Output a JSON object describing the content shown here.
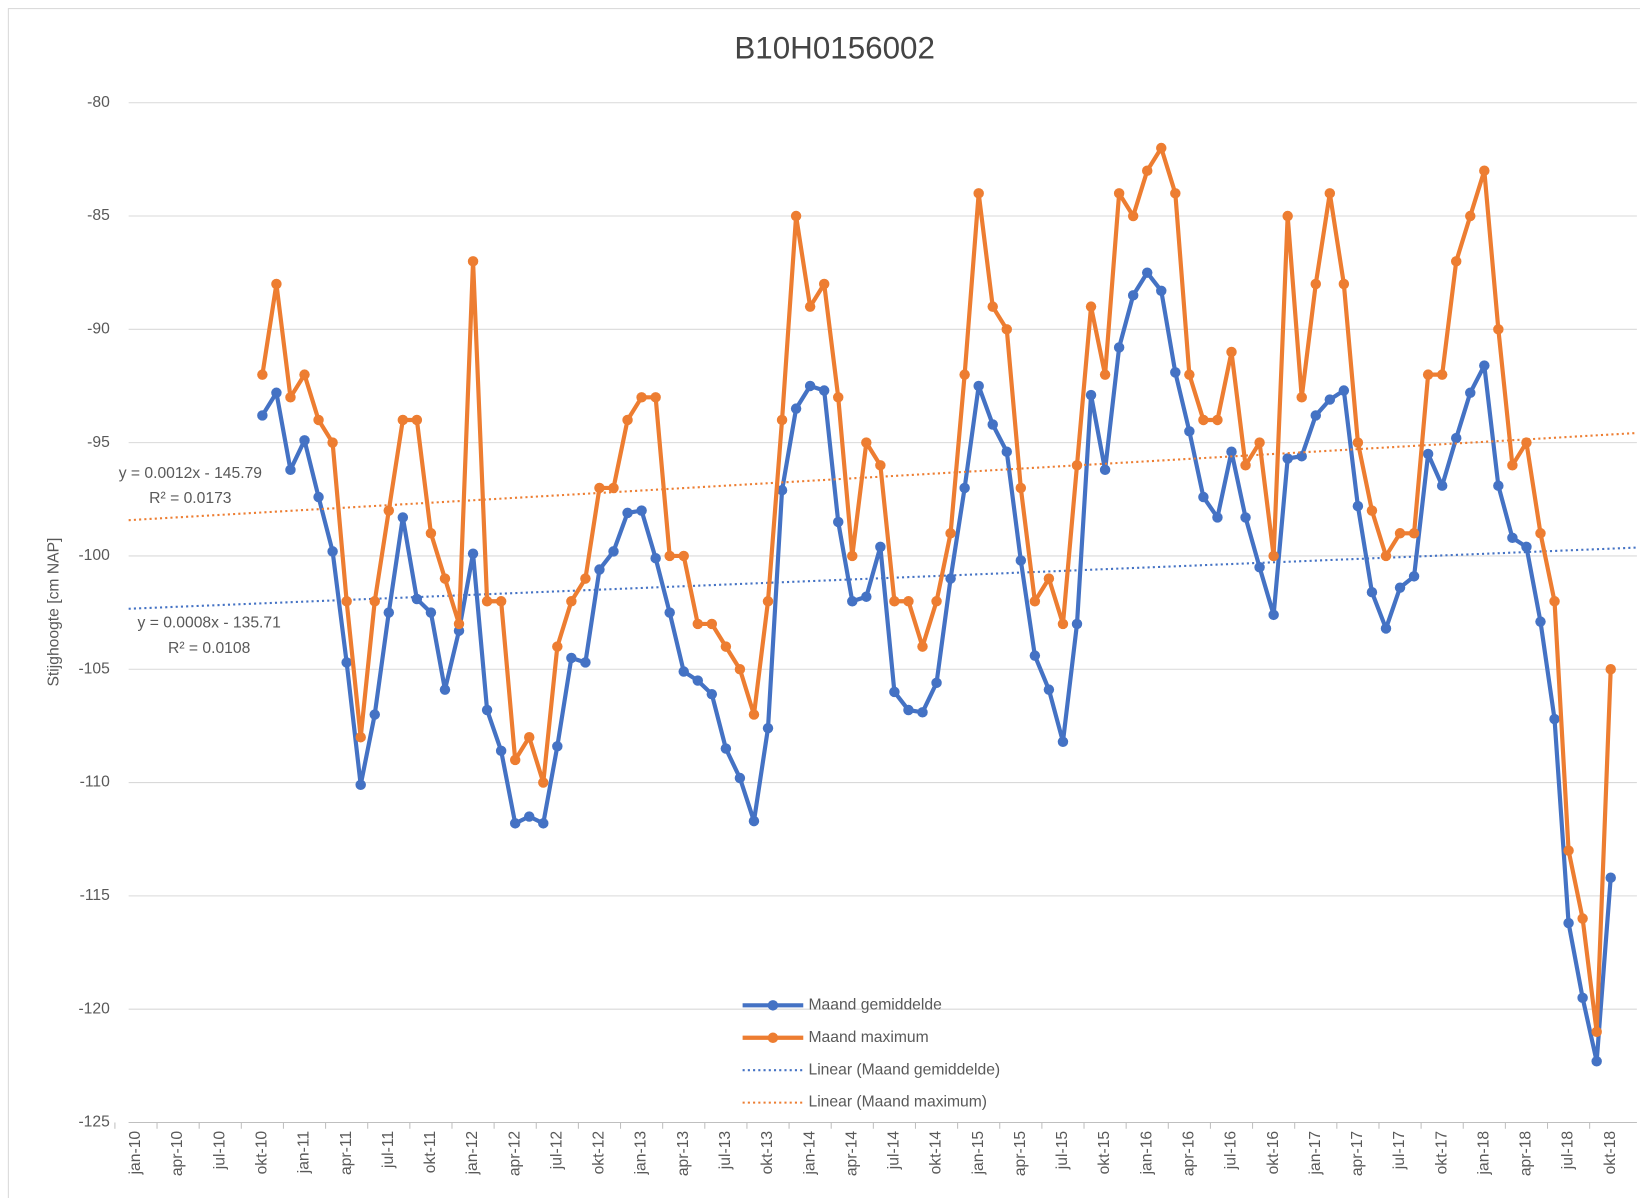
{
  "chart_data": {
    "type": "line",
    "title": "B10H0156002",
    "y_label": "Stijghoogte [cm NAP]",
    "categories": [
      "jan-10",
      null,
      null,
      "apr-10",
      null,
      null,
      "jul-10",
      null,
      null,
      "okt-10",
      null,
      null,
      "jan-11",
      null,
      null,
      "apr-11",
      null,
      null,
      "jul-11",
      null,
      null,
      "okt-11",
      null,
      null,
      "jan-12",
      null,
      null,
      "apr-12",
      null,
      null,
      "jul-12",
      null,
      null,
      "okt-12",
      null,
      null,
      "jan-13",
      null,
      null,
      "apr-13",
      null,
      null,
      "jul-13",
      null,
      null,
      "okt-13",
      null,
      null,
      "jan-14",
      null,
      null,
      "apr-14",
      null,
      null,
      "jul-14",
      null,
      null,
      "okt-14",
      null,
      null,
      "jan-15",
      null,
      null,
      "apr-15",
      null,
      null,
      "jul-15",
      null,
      null,
      "okt-15",
      null,
      null,
      "jan-16",
      null,
      null,
      "apr-16",
      null,
      null,
      "jul-16",
      null,
      null,
      "okt-16",
      null,
      null,
      "jan-17",
      null,
      null,
      "apr-17",
      null,
      null,
      "jul-17",
      null,
      null,
      "okt-17",
      null,
      null,
      "jan-18",
      null,
      null,
      "apr-18",
      null,
      null,
      "jul-18",
      null,
      null,
      "okt-18"
    ],
    "series": [
      {
        "name": "Maand gemiddelde",
        "color": "#4472c4",
        "values": [
          null,
          null,
          null,
          null,
          null,
          null,
          null,
          null,
          null,
          -93.8,
          -92.8,
          -96.2,
          -94.9,
          -97.4,
          -99.8,
          -104.7,
          -110.1,
          -107.0,
          -102.5,
          -98.3,
          -101.9,
          -102.5,
          -105.9,
          -103.3,
          -99.9,
          -106.8,
          -108.6,
          -111.8,
          -111.5,
          -111.8,
          -108.4,
          -104.5,
          -104.7,
          -100.6,
          -99.8,
          -98.1,
          -98.0,
          -100.1,
          -102.5,
          -105.1,
          -105.5,
          -106.1,
          -108.5,
          -109.8,
          -111.7,
          -107.6,
          -97.1,
          -93.5,
          -92.5,
          -92.7,
          -98.5,
          -102.0,
          -101.8,
          -99.6,
          -106.0,
          -106.8,
          -106.9,
          -105.6,
          -101.0,
          -97.0,
          -92.5,
          -94.2,
          -95.4,
          -100.2,
          -104.4,
          -105.9,
          -108.2,
          -103.0,
          -92.9,
          -96.2,
          -90.8,
          -88.5,
          -87.5,
          -88.3,
          -91.9,
          -94.5,
          -97.4,
          -98.3,
          -95.4,
          -98.3,
          -100.5,
          -102.6,
          -95.7,
          -95.6,
          -93.8,
          -93.1,
          -92.7,
          -97.8,
          -101.6,
          -103.2,
          -101.4,
          -100.9,
          -95.5,
          -96.9,
          -94.8,
          -92.8,
          -91.6,
          -96.9,
          -99.2,
          -99.6,
          -102.9,
          -107.2,
          -116.2,
          -119.5,
          -122.3,
          -114.2
        ],
        "trendline": {
          "name": "Linear (Maand gemiddelde)",
          "equation": "y = 0.0008x - 135.71",
          "r_squared": "R² = 0.0108"
        }
      },
      {
        "name": "Maand maximum",
        "color": "#ed7d31",
        "values": [
          null,
          null,
          null,
          null,
          null,
          null,
          null,
          null,
          null,
          -92,
          -88,
          -93,
          -92,
          -94,
          -95,
          -102,
          -108,
          -102,
          -98,
          -94,
          -94,
          -99,
          -101,
          -103,
          -87,
          -102,
          -102,
          -109,
          -108,
          -110,
          -104,
          -102,
          -101,
          -97,
          -97,
          -94,
          -93,
          -93,
          -100,
          -100,
          -103,
          -103,
          -104,
          -105,
          -107,
          -102,
          -94,
          -85,
          -89,
          -88,
          -93,
          -100,
          -95,
          -96,
          -102,
          -102,
          -104,
          -102,
          -99,
          -92,
          -84,
          -89,
          -90,
          -97,
          -102,
          -101,
          -103,
          -96,
          -89,
          -92,
          -84,
          -85,
          -83,
          -82,
          -84,
          -92,
          -94,
          -94,
          -91,
          -96,
          -95,
          -100,
          -85,
          -93,
          -88,
          -84,
          -88,
          -95,
          -98,
          -100,
          -99,
          -99,
          -92,
          -92,
          -87,
          -85,
          -83,
          -90,
          -96,
          -95,
          -99,
          -102,
          -113,
          -116,
          -121,
          -105
        ],
        "trendline": {
          "name": "Linear (Maand maximum)",
          "equation": "y = 0.0012x - 145.79",
          "r_squared": "R² = 0.0173"
        }
      }
    ],
    "ylim": [
      -125,
      -80
    ],
    "yticks": [
      -80,
      -85,
      -90,
      -95,
      -100,
      -105,
      -110,
      -115,
      -120,
      -125
    ],
    "grid": true,
    "legend": "bottom"
  }
}
